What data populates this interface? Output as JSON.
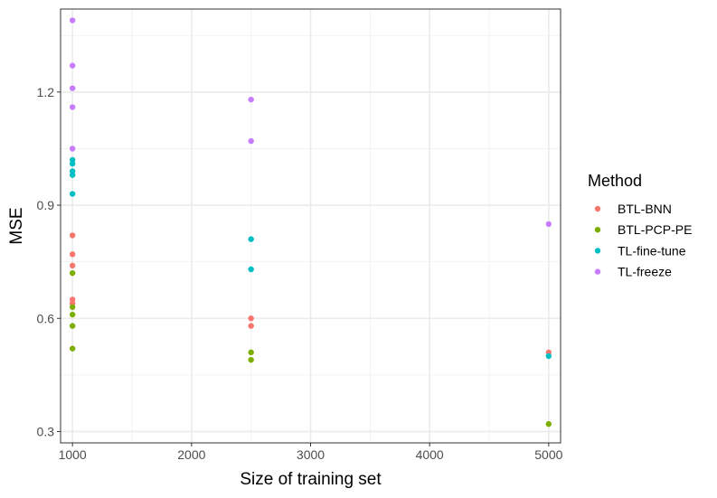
{
  "chart_data": {
    "type": "scatter",
    "xlabel": "Size of training set",
    "ylabel": "MSE",
    "xlim": [
      900,
      5100
    ],
    "ylim": [
      0.27,
      1.42
    ],
    "x_ticks": [
      1000,
      2000,
      3000,
      4000,
      5000
    ],
    "x_minor": [
      1500,
      2500,
      3500,
      4500
    ],
    "y_ticks": [
      0.3,
      0.6,
      0.9,
      1.2
    ],
    "y_tick_labels": [
      "0.3",
      "0.6",
      "0.9",
      "1.2"
    ],
    "y_minor": [
      0.45,
      0.75,
      1.05,
      1.35
    ],
    "grid": true,
    "legend": {
      "title": "Method",
      "placement": "right"
    },
    "series": [
      {
        "name": "BTL-BNN",
        "color": "#F8766D",
        "points": [
          [
            1000,
            0.82
          ],
          [
            1000,
            0.77
          ],
          [
            1000,
            0.74
          ],
          [
            1000,
            0.65
          ],
          [
            1000,
            0.64
          ],
          [
            2500,
            0.6
          ],
          [
            2500,
            0.58
          ],
          [
            5000,
            0.51
          ]
        ]
      },
      {
        "name": "BTL-PCP-PE",
        "color": "#7CAE00",
        "points": [
          [
            1000,
            0.72
          ],
          [
            1000,
            0.63
          ],
          [
            1000,
            0.61
          ],
          [
            1000,
            0.58
          ],
          [
            1000,
            0.52
          ],
          [
            2500,
            0.51
          ],
          [
            2500,
            0.49
          ],
          [
            5000,
            0.32
          ]
        ]
      },
      {
        "name": "TL-fine-tune",
        "color": "#00BFC4",
        "points": [
          [
            1000,
            1.02
          ],
          [
            1000,
            1.01
          ],
          [
            1000,
            0.99
          ],
          [
            1000,
            0.98
          ],
          [
            1000,
            0.93
          ],
          [
            2500,
            0.81
          ],
          [
            2500,
            0.73
          ],
          [
            5000,
            0.5
          ]
        ]
      },
      {
        "name": "TL-freeze",
        "color": "#C77CFF",
        "points": [
          [
            1000,
            1.39
          ],
          [
            1000,
            1.27
          ],
          [
            1000,
            1.21
          ],
          [
            1000,
            1.16
          ],
          [
            1000,
            1.05
          ],
          [
            2500,
            1.18
          ],
          [
            2500,
            1.07
          ],
          [
            5000,
            0.85
          ]
        ]
      }
    ]
  }
}
